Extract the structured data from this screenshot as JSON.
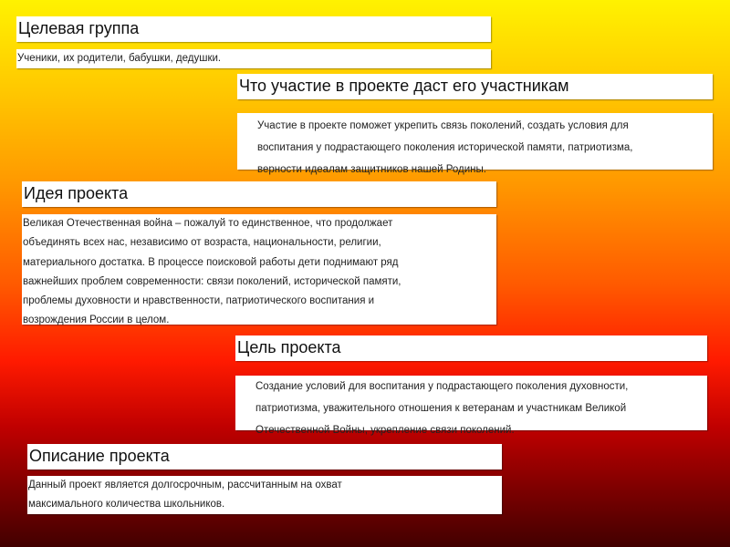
{
  "slide": {
    "sections": [
      {
        "title": "Целевая группа",
        "lines": [
          "Ученики, их родители, бабушки, дедушки."
        ]
      },
      {
        "title": "Что участие в проекте даст его участникам",
        "lines": [
          "Участие в проекте поможет укрепить связь поколений, создать условия для",
          "воспитания у подрастающего поколения исторической памяти, патриотизма,",
          "верности идеалам защитников нашей Родины."
        ]
      },
      {
        "title": "Идея проекта",
        "lines": [
          "Великая Отечественная война – пожалуй  то единственное, что продолжает",
          "объединять всех нас, независимо от возраста, национальности, религии,",
          "материального достатка. В процессе поисковой работы дети поднимают ряд",
          "важнейших проблем современности: связи поколений, исторической памяти,",
          "проблемы духовности и нравственности, патриотического воспитания и",
          "возрождения России в целом."
        ]
      },
      {
        "title": "Цель проекта",
        "lines": [
          "Создание условий для воспитания у подрастающего поколения духовности,",
          "патриотизма, уважительного отношения к ветеранам и участникам Великой",
          "Отечественной Войны, укрепление связи поколений."
        ]
      },
      {
        "title": "Описание проекта",
        "lines": [
          "Данный проект является долгосрочным, рассчитанным на охват",
          "максимального количества школьников."
        ]
      }
    ]
  },
  "colors": {
    "gradient_top": "#fff200",
    "gradient_mid": "#ff9a00",
    "gradient_red": "#ff1a00",
    "gradient_bottom": "#420000"
  }
}
